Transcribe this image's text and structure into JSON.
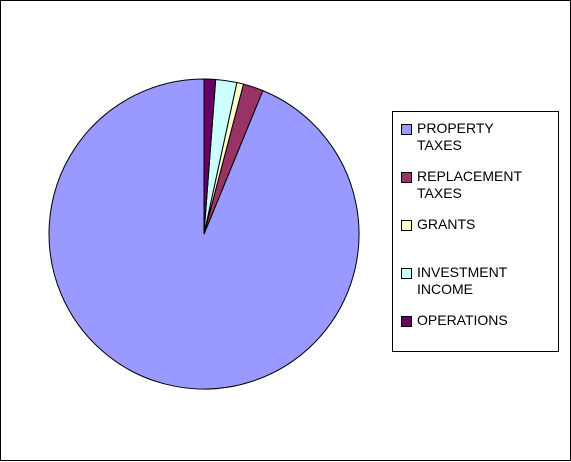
{
  "chart_data": {
    "type": "pie",
    "title": "",
    "slices": [
      {
        "label": "PROPERTY TAXES",
        "value": 93.8,
        "color": "#9999ff"
      },
      {
        "label": "REPLACEMENT TAXES",
        "value": 2.1,
        "color": "#993366"
      },
      {
        "label": "GRANTS",
        "value": 0.7,
        "color": "#ffffcc"
      },
      {
        "label": "INVESTMENT INCOME",
        "value": 2.2,
        "color": "#ccffff"
      },
      {
        "label": "OPERATIONS",
        "value": 1.2,
        "color": "#660066"
      }
    ],
    "legend_position": "right"
  },
  "legend": {
    "items": [
      {
        "label": "PROPERTY\nTAXES"
      },
      {
        "label": "REPLACEMENT\nTAXES"
      },
      {
        "label": "GRANTS"
      },
      {
        "label": "INVESTMENT\nINCOME"
      },
      {
        "label": "OPERATIONS"
      }
    ]
  }
}
